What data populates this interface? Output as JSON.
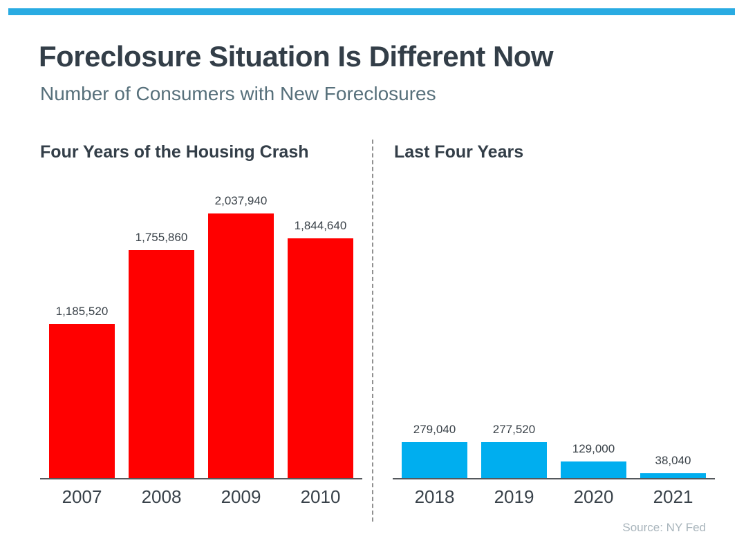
{
  "page": {
    "title": "Foreclosure Situation Is Different Now",
    "subtitle": "Number of Consumers with New Foreclosures",
    "source": "Source: NY Fed",
    "accent_color": "#29ABE2",
    "title_color": "#333E48",
    "subtitle_color": "#57707B",
    "source_color": "#A9B5BC"
  },
  "chart_data": [
    {
      "type": "bar",
      "title": "Four Years of the Housing Crash",
      "categories": [
        "2007",
        "2008",
        "2009",
        "2010"
      ],
      "values": [
        1185520,
        1755860,
        2037940,
        1844640
      ],
      "labels": [
        "1,185,520",
        "1,755,860",
        "2,037,940",
        "1,844,640"
      ],
      "bar_color": "#FF0000",
      "xlabel": "",
      "ylabel": "",
      "ylim": [
        0,
        2037940
      ],
      "grid": false,
      "legend": "none",
      "value_labels": "above bars"
    },
    {
      "type": "bar",
      "title": "Last Four Years",
      "categories": [
        "2018",
        "2019",
        "2020",
        "2021"
      ],
      "values": [
        279040,
        277520,
        129000,
        38040
      ],
      "labels": [
        "279,040",
        "277,520",
        "129,000",
        "38,040"
      ],
      "bar_color": "#00AEEF",
      "xlabel": "",
      "ylabel": "",
      "ylim": [
        0,
        2037940
      ],
      "grid": false,
      "legend": "none",
      "value_labels": "above bars"
    }
  ]
}
